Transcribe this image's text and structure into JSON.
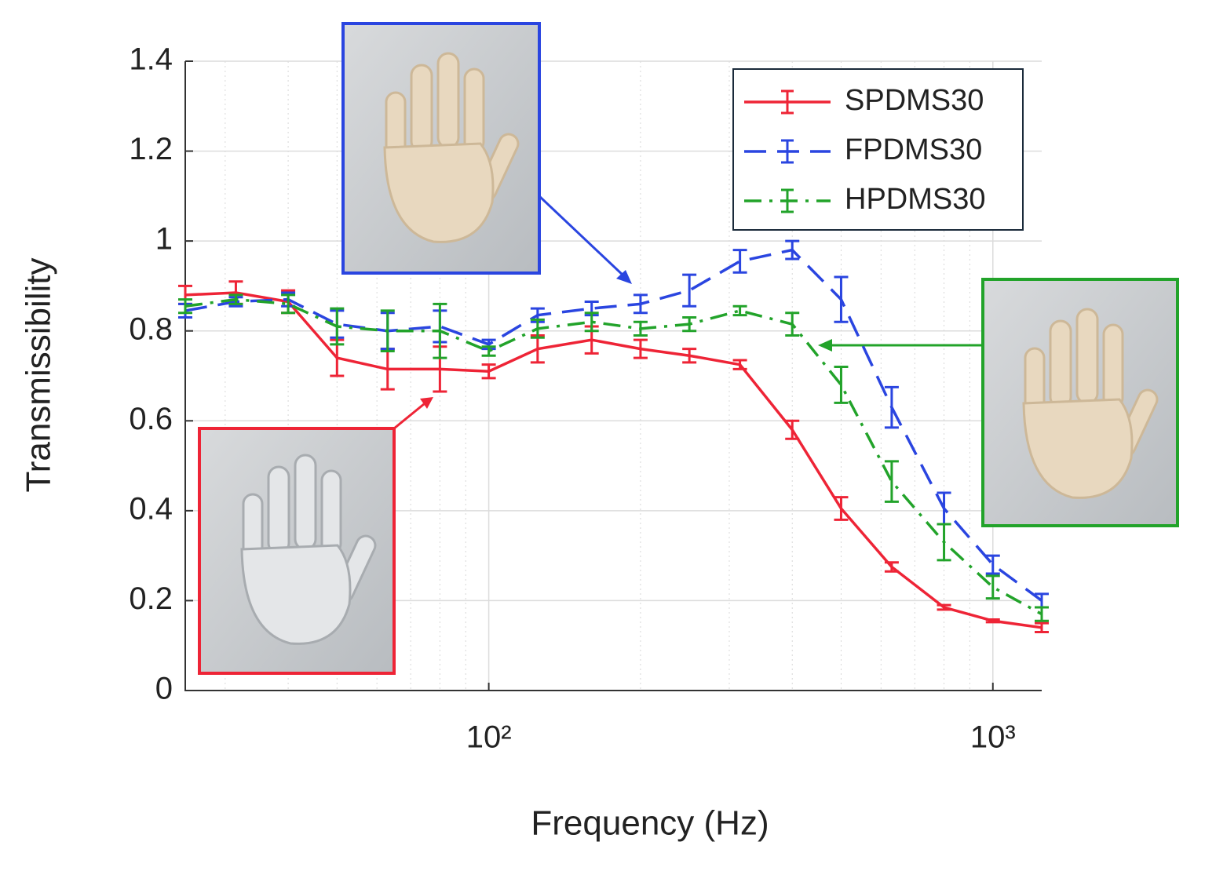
{
  "chart_data": {
    "type": "line",
    "xlabel": "Frequency (Hz)",
    "ylabel": "Transmissibility",
    "x": [
      25,
      31.5,
      40,
      50,
      63,
      80,
      100,
      125,
      160,
      200,
      250,
      315,
      400,
      500,
      630,
      800,
      1000,
      1250
    ],
    "xscale": "log",
    "xlim": [
      25,
      1250
    ],
    "xticks": [
      {
        "value": 100,
        "label": "10²"
      },
      {
        "value": 1000,
        "label": "10³"
      }
    ],
    "ylim": [
      0,
      1.4
    ],
    "yticks": [
      0,
      0.2,
      0.4,
      0.6,
      0.8,
      1,
      1.2,
      1.4
    ],
    "grid": true,
    "legend": "upper right",
    "series": [
      {
        "name": "SPDMS30",
        "color": "#ee2436",
        "dash": "solid",
        "values": [
          0.88,
          0.885,
          0.865,
          0.74,
          0.715,
          0.715,
          0.71,
          0.76,
          0.78,
          0.76,
          0.745,
          0.725,
          0.58,
          0.405,
          0.275,
          0.185,
          0.155,
          0.14
        ],
        "errors": [
          0.02,
          0.025,
          0.025,
          0.04,
          0.045,
          0.05,
          0.015,
          0.03,
          0.03,
          0.02,
          0.015,
          0.01,
          0.02,
          0.025,
          0.01,
          0.005,
          0.003,
          0.01
        ]
      },
      {
        "name": "FPDMS30",
        "color": "#2a45e0",
        "dash": "dashed",
        "values": [
          0.845,
          0.865,
          0.87,
          0.815,
          0.8,
          0.81,
          0.77,
          0.835,
          0.85,
          0.86,
          0.89,
          0.955,
          0.98,
          0.87,
          0.63,
          0.405,
          0.28,
          0.2
        ],
        "errors": [
          0.015,
          0.01,
          0.015,
          0.03,
          0.04,
          0.035,
          0.01,
          0.015,
          0.015,
          0.02,
          0.035,
          0.025,
          0.02,
          0.05,
          0.045,
          0.035,
          0.02,
          0.015
        ]
      },
      {
        "name": "HPDMS30",
        "color": "#22a32a",
        "dash": "dashdot",
        "values": [
          0.855,
          0.87,
          0.86,
          0.81,
          0.8,
          0.8,
          0.755,
          0.805,
          0.82,
          0.805,
          0.815,
          0.845,
          0.815,
          0.68,
          0.465,
          0.33,
          0.23,
          0.17
        ],
        "errors": [
          0.015,
          0.01,
          0.02,
          0.04,
          0.045,
          0.06,
          0.01,
          0.02,
          0.02,
          0.015,
          0.015,
          0.01,
          0.025,
          0.04,
          0.045,
          0.04,
          0.025,
          0.015
        ]
      }
    ]
  }
}
